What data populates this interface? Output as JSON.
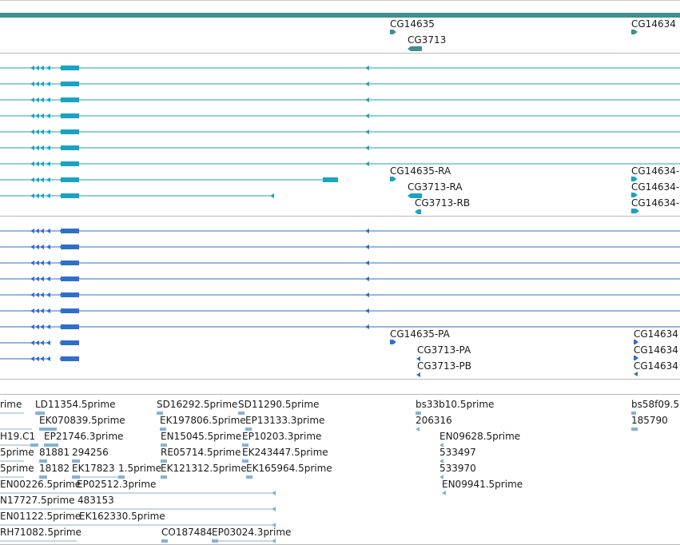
{
  "colors": {
    "gene": "#3f8f8f",
    "transcript": "#1aa3c2",
    "protein": "#2e6fcc",
    "est": "#80b4d8",
    "separator": "#b9b9b9"
  },
  "gene_track": {
    "labels": [
      "CG14635",
      "CG3713",
      "CG14634"
    ]
  },
  "transcript_track": {
    "labels": [
      "CG14635-RA",
      "CG3713-RA",
      "CG3713-RB",
      "CG14634-",
      "CG14634-",
      "CG14634-"
    ]
  },
  "protein_track": {
    "labels": [
      "CG14635-PA",
      "CG3713-PA",
      "CG3713-PB",
      "CG14634",
      "CG14634",
      "CG14634"
    ]
  },
  "est_track": {
    "labels": [
      "rime",
      "LD11354.5prime",
      "SD16292.5prime",
      "SD11290.5prime",
      "bs33b10.5prime",
      "bs58f09.5",
      "EK070839.5prime",
      "EK197806.5prime",
      "EP13133.3prime",
      "206316",
      "185790",
      "H19.C1",
      "EP21746.3prime",
      "EN15045.5prime",
      "EP10203.3prime",
      "EN09628.5prime",
      "5prime",
      "81881",
      "294256",
      "RE05714.5prime",
      "EK243447.5prime",
      "533497",
      "5prime",
      "18182",
      "EK17823",
      "1.5prime",
      "EK121312.5prime",
      "EK165964.5prime",
      "533970",
      "EN00226.5prime",
      "EP02512.3prime",
      "EN09941.5prime",
      "N17727.5prime",
      "483153",
      "EN01122.5prime",
      "EK162330.5prime",
      "RH71082.5prime",
      "CO187484",
      "EP03024.3prime"
    ]
  }
}
